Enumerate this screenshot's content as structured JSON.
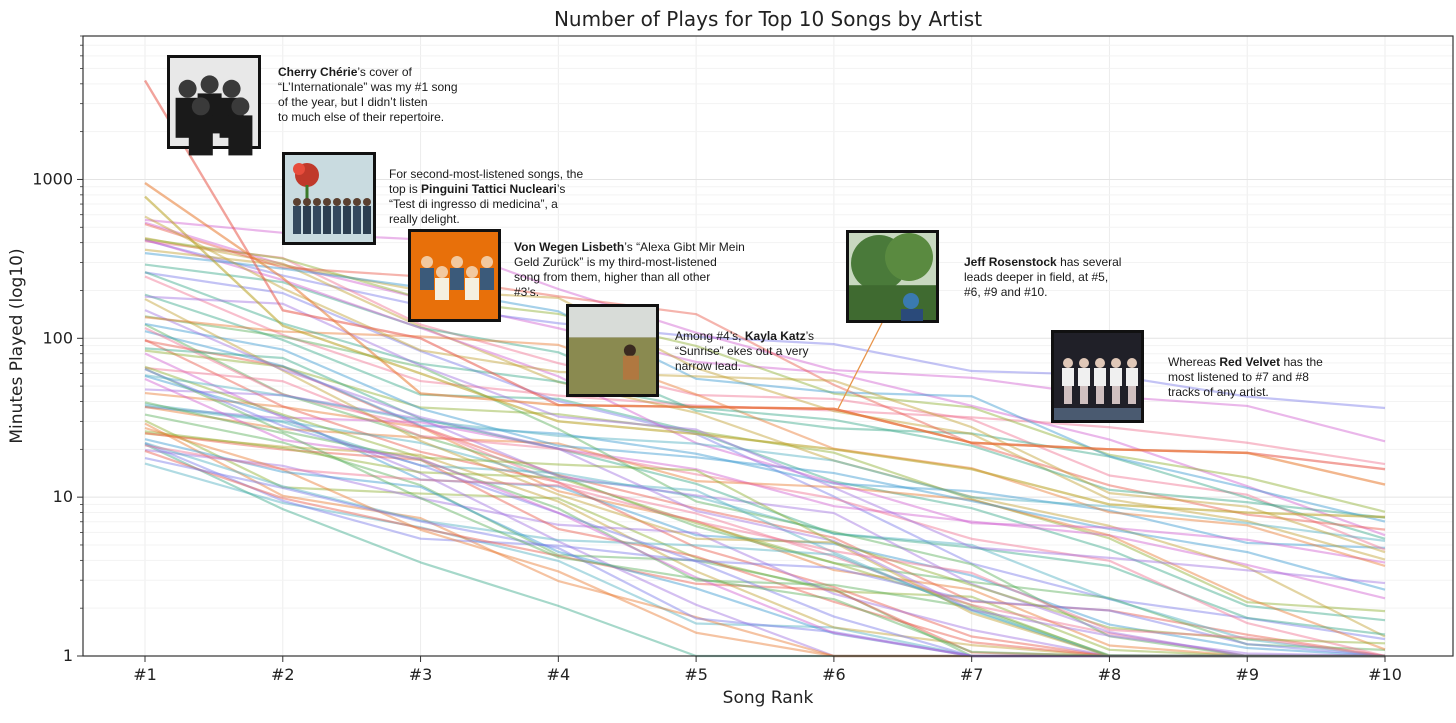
{
  "chart_data": {
    "type": "line",
    "title": "Number of Plays for Top 10 Songs by Artist",
    "xlabel": "Song Rank",
    "ylabel": "Minutes Played (log10)",
    "x_scale": "categorical",
    "y_scale": "log",
    "ylim": [
      1,
      8000
    ],
    "grid": true,
    "legend": "none",
    "categories": [
      "#1",
      "#2",
      "#3",
      "#4",
      "#5",
      "#6",
      "#7",
      "#8",
      "#9",
      "#10"
    ],
    "y_ticks": [
      1,
      10,
      100,
      1000
    ],
    "y_tick_labels": [
      "1",
      "10",
      "100",
      "1000"
    ],
    "highlighted_series": [
      {
        "values": [
          4200,
          150,
          100,
          38,
          37,
          36,
          22,
          20,
          19,
          15
        ],
        "color": "#e8584a"
      },
      {
        "values": [
          950,
          240,
          45,
          38,
          37,
          36,
          22,
          20,
          19,
          12
        ],
        "color": "#e87a30"
      },
      {
        "values": [
          780,
          120,
          60,
          30,
          25,
          20,
          15,
          9,
          8,
          7.5
        ],
        "color": "#b8a020"
      }
    ],
    "background_series_count": 60,
    "palette": [
      "#e8584a",
      "#e87a30",
      "#8fb030",
      "#3aa88a",
      "#3a9ad0",
      "#7b7be8",
      "#d060d0",
      "#f07090",
      "#5ab05a",
      "#4fb0c0",
      "#c0a030",
      "#a070e0"
    ],
    "annotations": [
      {
        "rank": "#1",
        "image_subject": "band-photo-black-and-white",
        "segments": [
          {
            "text": "Cherry Chérie",
            "bold": true
          },
          {
            "text": "’s cover of “L’Internationale” was my #1 song of the year, but I didn’t listen to much else of their repertoire.",
            "bold": false
          }
        ]
      },
      {
        "rank": "#2",
        "image_subject": "band-with-flowers",
        "segments": [
          {
            "text": "For second-most-listened songs, the top is ",
            "bold": false
          },
          {
            "text": "Pinguini Tattici Nucleari",
            "bold": true
          },
          {
            "text": "’s “Test di ingresso di medicina”, a really delight.",
            "bold": false
          }
        ]
      },
      {
        "rank": "#3",
        "image_subject": "band-on-orange",
        "segments": [
          {
            "text": "Von Wegen Lisbeth",
            "bold": true
          },
          {
            "text": "’s “Alexa Gibt Mir Mein Geld Zurück” is my third-most-listened song from them, higher than all other #3’s.",
            "bold": false
          }
        ]
      },
      {
        "rank": "#4",
        "image_subject": "woman-in-field",
        "segments": [
          {
            "text": "Among #4’s, ",
            "bold": false
          },
          {
            "text": "Kayla Katz",
            "bold": true
          },
          {
            "text": "’s “Sunrise” ekes out a very narrow lead.",
            "bold": false
          }
        ]
      },
      {
        "rank": "#6",
        "image_subject": "man-under-tree",
        "segments": [
          {
            "text": "Jeff Rosenstock",
            "bold": true
          },
          {
            "text": " has several leads deeper in field, at #5, #6, #9 and #10.",
            "bold": false
          }
        ]
      },
      {
        "rank": "#7",
        "image_subject": "group-on-stage",
        "segments": [
          {
            "text": "Whereas ",
            "bold": false
          },
          {
            "text": "Red Velvet",
            "bold": true
          },
          {
            "text": " has the most listened to #7 and #8 tracks of any artist.",
            "bold": false
          }
        ]
      }
    ]
  }
}
